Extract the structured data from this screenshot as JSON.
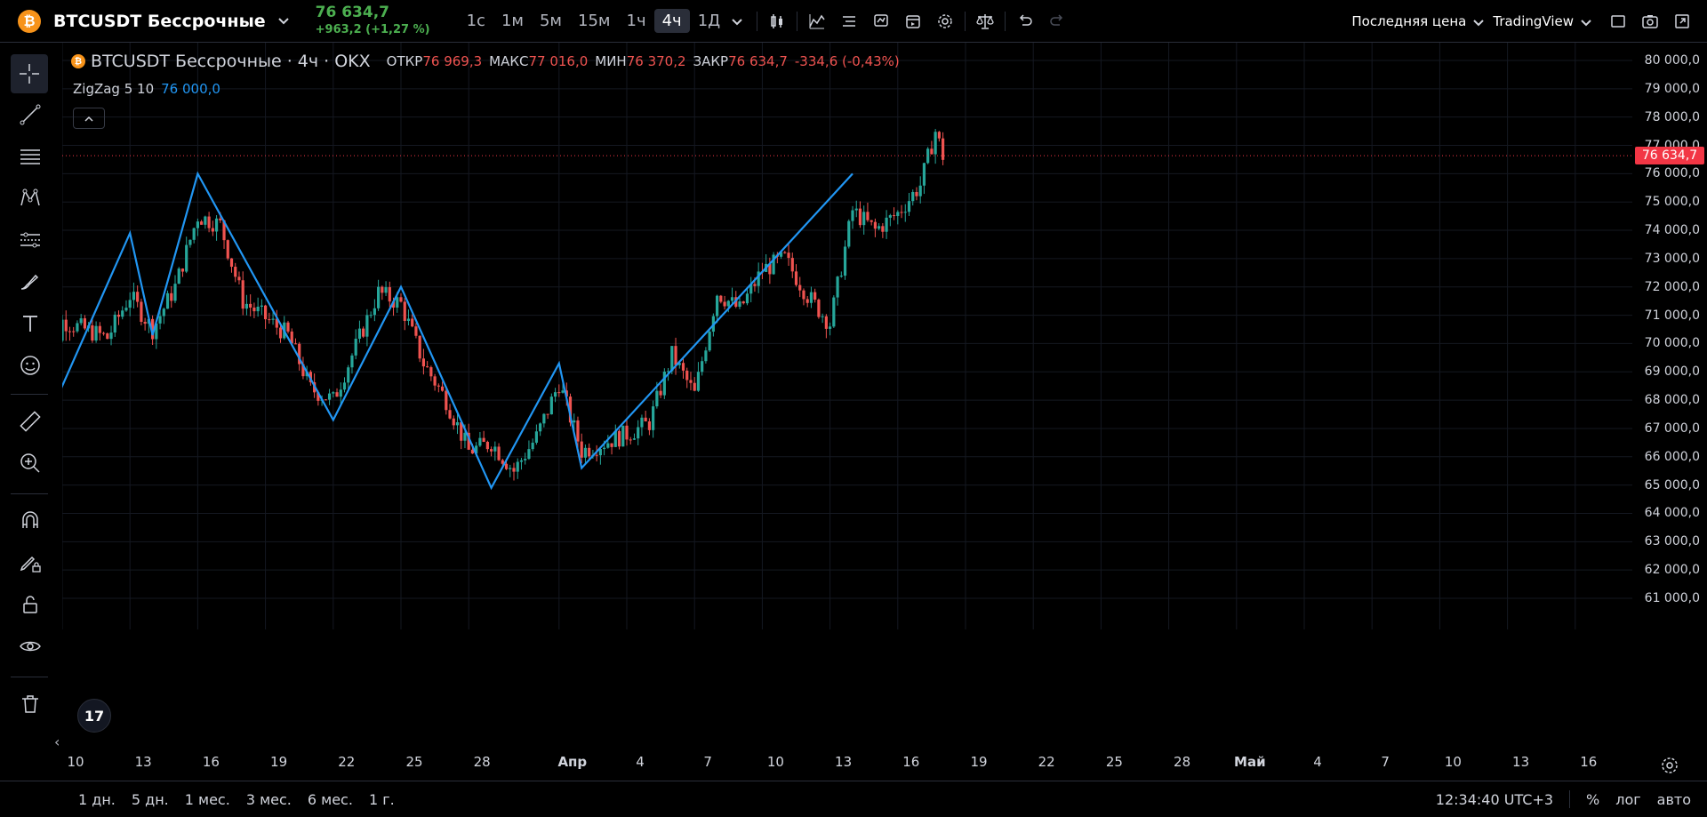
{
  "header": {
    "symbol_badge": "₿",
    "symbol": "BTCUSDT Бессрочные",
    "last_price": "76 634,7",
    "change": "+963,2 (+1,27 %)",
    "timeframes": [
      "1с",
      "1м",
      "5м",
      "15м",
      "1ч",
      "4ч",
      "1Д"
    ],
    "active_timeframe": "4ч",
    "price_type": "Последняя цена",
    "chart_source": "TradingView"
  },
  "legend": {
    "title": "BTCUSDT Бессрочные · 4ч · OKX",
    "open_label": "ОТКР",
    "open": "76 969,3",
    "high_label": "МАКС",
    "high": "77 016,0",
    "low_label": "МИН",
    "low": "76 370,2",
    "close_label": "ЗАКР",
    "close": "76 634,7",
    "change": "-334,6 (-0,43%)"
  },
  "indicator": {
    "name": "ZigZag 5 10",
    "value": "76 000,0"
  },
  "price_axis": {
    "ticks": [
      "80 000,0",
      "79 000,0",
      "78 000,0",
      "77 000,0",
      "76 000,0",
      "75 000,0",
      "74 000,0",
      "73 000,0",
      "72 000,0",
      "71 000,0",
      "70 000,0",
      "69 000,0",
      "68 000,0",
      "67 000,0",
      "66 000,0",
      "65 000,0",
      "64 000,0",
      "63 000,0",
      "62 000,0",
      "61 000,0"
    ],
    "tick_values": [
      80000,
      79000,
      78000,
      77000,
      76000,
      75000,
      74000,
      73000,
      72000,
      71000,
      70000,
      69000,
      68000,
      67000,
      66000,
      65000,
      64000,
      63000,
      62000,
      61000
    ],
    "current_price_label": "76 634,7",
    "current_price": 76634.7
  },
  "time_axis": {
    "ticks": [
      "10",
      "13",
      "16",
      "19",
      "22",
      "25",
      "28",
      "Апр",
      "4",
      "7",
      "10",
      "13",
      "16",
      "19",
      "22",
      "25",
      "28",
      "Май",
      "4",
      "7",
      "10",
      "13",
      "16"
    ],
    "bold": [
      "Апр",
      "Май"
    ]
  },
  "bottom": {
    "ranges": [
      "1 дн.",
      "5 дн.",
      "1 мес.",
      "3 мес.",
      "6 мес.",
      "1 г."
    ],
    "clock": "12:34:40 UTC+3",
    "percent": "%",
    "log": "лог",
    "auto": "авто",
    "scroll_left": "‹",
    "logo": "17"
  },
  "colors": {
    "up": "#26a69a",
    "down": "#ef5350",
    "zigzag": "#2196f3",
    "price_line": "#f23645"
  },
  "chart_data": {
    "type": "candlestick",
    "title": "BTCUSDT Бессрочные · 4ч · OKX",
    "ylim": [
      60500,
      80500
    ],
    "zigzag_pivots": [
      {
        "x": "9 мар",
        "y": 66700
      },
      {
        "x": "13 мар",
        "y": 73900
      },
      {
        "x": "14 мар",
        "y": 70300
      },
      {
        "x": "16 мар",
        "y": 76000
      },
      {
        "x": "22 мар",
        "y": 67300
      },
      {
        "x": "25 мар",
        "y": 72000
      },
      {
        "x": "29 мар",
        "y": 64900
      },
      {
        "x": "1 апр",
        "y": 69300
      },
      {
        "x": "2 апр",
        "y": 65600
      },
      {
        "x": "14 апр",
        "y": 76000
      }
    ],
    "close_anchors": [
      {
        "x": "9 мар",
        "y": 67700
      },
      {
        "x": "10 мар",
        "y": 70800
      },
      {
        "x": "12 мар",
        "y": 70200
      },
      {
        "x": "13 мар",
        "y": 71700
      },
      {
        "x": "14 мар",
        "y": 70500
      },
      {
        "x": "15 мар",
        "y": 72000
      },
      {
        "x": "16 мар",
        "y": 74500
      },
      {
        "x": "17 мар",
        "y": 74200
      },
      {
        "x": "18 мар",
        "y": 71500
      },
      {
        "x": "20 мар",
        "y": 70300
      },
      {
        "x": "21 мар",
        "y": 68400
      },
      {
        "x": "22 мар",
        "y": 68000
      },
      {
        "x": "24 мар",
        "y": 71800
      },
      {
        "x": "25 мар",
        "y": 71400
      },
      {
        "x": "26 мар",
        "y": 69300
      },
      {
        "x": "27 мар",
        "y": 68000
      },
      {
        "x": "28 мар",
        "y": 66200
      },
      {
        "x": "29 мар",
        "y": 66500
      },
      {
        "x": "30 мар",
        "y": 65500
      },
      {
        "x": "31 мар",
        "y": 66700
      },
      {
        "x": "1 апр",
        "y": 68600
      },
      {
        "x": "2 апр",
        "y": 66200
      },
      {
        "x": "4 апр",
        "y": 66800
      },
      {
        "x": "5 апр",
        "y": 67200
      },
      {
        "x": "6 апр",
        "y": 69600
      },
      {
        "x": "7 апр",
        "y": 68200
      },
      {
        "x": "8 апр",
        "y": 71800
      },
      {
        "x": "9 апр",
        "y": 71200
      },
      {
        "x": "10 апр",
        "y": 72600
      },
      {
        "x": "11 апр",
        "y": 73000
      },
      {
        "x": "12 апр",
        "y": 71700
      },
      {
        "x": "13 апр",
        "y": 70700
      },
      {
        "x": "14 апр",
        "y": 74700
      },
      {
        "x": "15 апр",
        "y": 74000
      },
      {
        "x": "16 апр",
        "y": 74600
      },
      {
        "x": "17 апр",
        "y": 75600
      },
      {
        "x": "17 апр 16:00",
        "y": 77500
      },
      {
        "x": "18 апр",
        "y": 76634.7
      }
    ]
  }
}
